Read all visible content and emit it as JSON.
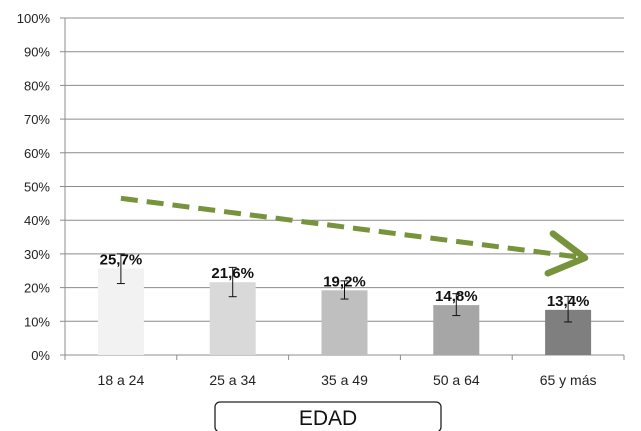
{
  "chart_data": {
    "type": "bar",
    "categories": [
      "18 a 24",
      "25 a 34",
      "35 a 49",
      "50 a 64",
      "65 y más"
    ],
    "values": [
      25.7,
      21.6,
      19.2,
      14.8,
      13.4
    ],
    "data_labels": [
      "25,7%",
      "21,6%",
      "19,2%",
      "14,8%",
      "13,4%"
    ],
    "error_low": [
      21.2,
      17.3,
      16.6,
      11.7,
      9.8
    ],
    "error_high": [
      30.0,
      26.0,
      22.0,
      18.2,
      17.4
    ],
    "bar_colors": [
      "#f2f2f2",
      "#d9d9d9",
      "#bfbfbf",
      "#a6a6a6",
      "#7f7f7f"
    ],
    "ylim": [
      0,
      100
    ],
    "yticks": [
      "0%",
      "10%",
      "20%",
      "30%",
      "40%",
      "50%",
      "60%",
      "70%",
      "80%",
      "90%",
      "100%"
    ],
    "xlabel": "EDAD",
    "ylabel": "",
    "grid": true,
    "trend_arrow": {
      "style": "dashed",
      "color": "#77933c",
      "from": {
        "category_index": 0,
        "value": 46.5
      },
      "to": {
        "category_index": 4,
        "value": 29.0
      }
    }
  }
}
